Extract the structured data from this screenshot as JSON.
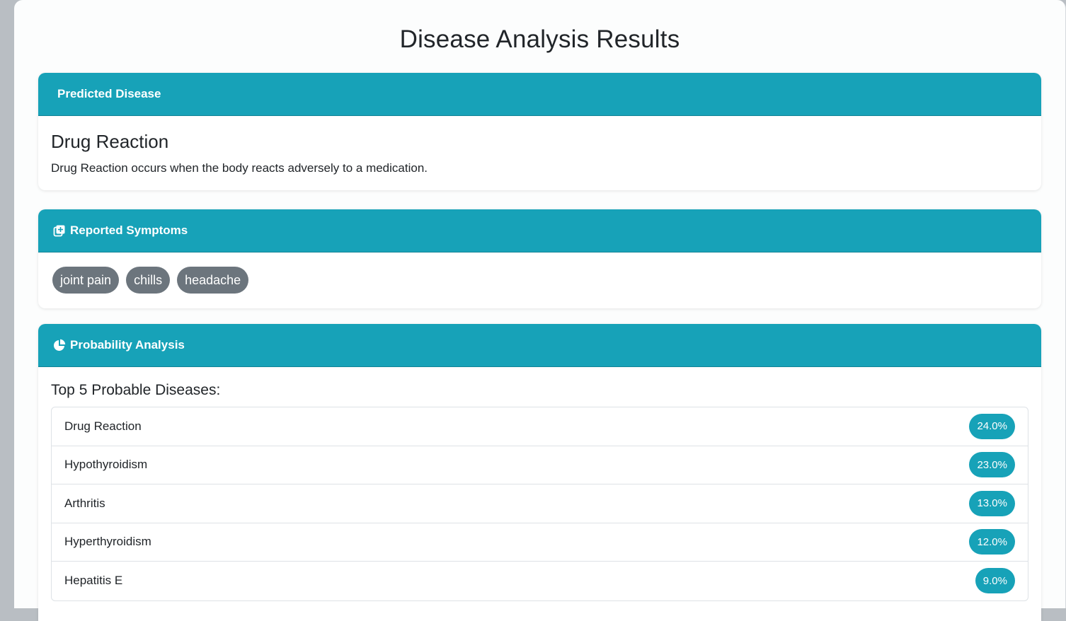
{
  "page": {
    "title": "Disease Analysis Results"
  },
  "colors": {
    "accent": "#17a2b8",
    "badge_gray": "#6c757d"
  },
  "predicted": {
    "header": "Predicted Disease",
    "disease_name": "Drug Reaction",
    "description": "Drug Reaction occurs when the body reacts adversely to a medication."
  },
  "symptoms": {
    "header": "Reported Symptoms",
    "icon": "notes-medical-icon",
    "items": [
      {
        "label": "joint pain"
      },
      {
        "label": "chills"
      },
      {
        "label": "headache"
      }
    ]
  },
  "probability": {
    "header": "Probability Analysis",
    "icon": "chart-pie-icon",
    "subtitle": "Top 5 Probable Diseases:",
    "items": [
      {
        "name": "Drug Reaction",
        "percent": "24.0%"
      },
      {
        "name": "Hypothyroidism",
        "percent": "23.0%"
      },
      {
        "name": "Arthritis",
        "percent": "13.0%"
      },
      {
        "name": "Hyperthyroidism",
        "percent": "12.0%"
      },
      {
        "name": "Hepatitis E",
        "percent": "9.0%"
      }
    ]
  }
}
